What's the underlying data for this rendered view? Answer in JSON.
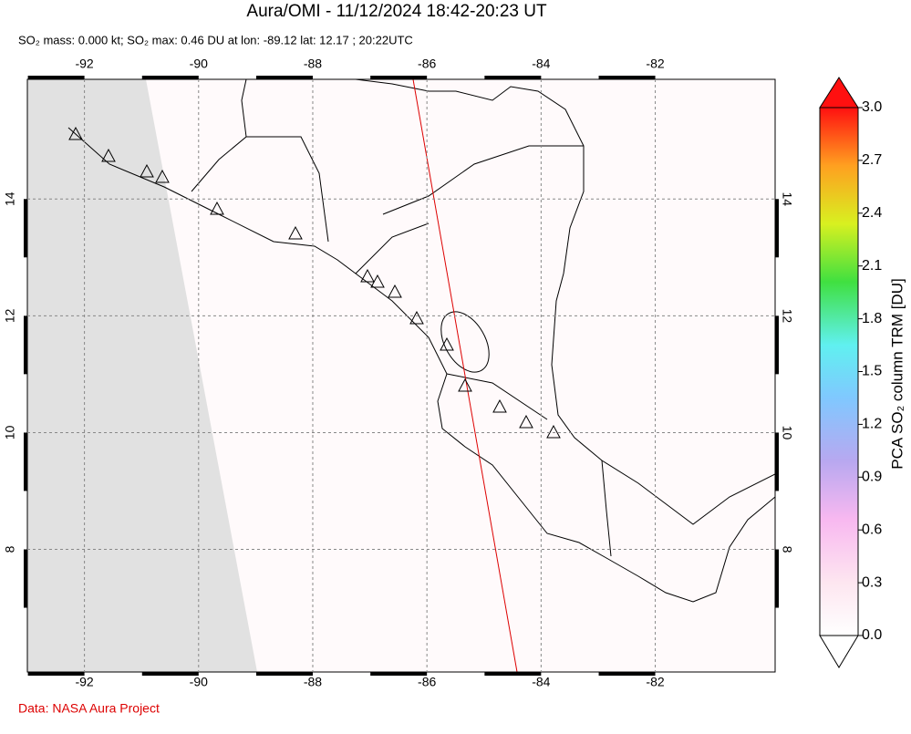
{
  "chart_data": {
    "type": "map",
    "title": "Aura/OMI - 11/12/2024 18:42-20:23 UT",
    "subtitle": "SO₂ mass: 0.000 kt; SO₂ max: 0.46 DU at lon: -89.12 lat: 12.17 ; 20:22UTC",
    "xlim": [
      -93,
      -79.9
    ],
    "ylim": [
      5.9,
      16.05
    ],
    "xticks": [
      -92,
      -90,
      -88,
      -86,
      -84,
      -82
    ],
    "yticks": [
      8,
      10,
      12,
      14
    ],
    "grid": true,
    "colorbar": {
      "label": "PCA SO₂ column TRM [DU]",
      "lim": [
        0,
        3
      ],
      "ticks": [
        {
          "value": 0,
          "label": "0.0"
        },
        {
          "value": 0.3,
          "label": "0.3"
        },
        {
          "value": 0.6,
          "label": "0.6"
        },
        {
          "value": 0.9,
          "label": "0.9"
        },
        {
          "value": 1.2,
          "label": "1.2"
        },
        {
          "value": 1.5,
          "label": "1.5"
        },
        {
          "value": 1.8,
          "label": "1.8"
        },
        {
          "value": 2.1,
          "label": "2.1"
        },
        {
          "value": 2.4,
          "label": "2.4"
        },
        {
          "value": 2.7,
          "label": "2.7"
        },
        {
          "value": 3,
          "label": "3.0"
        }
      ]
    },
    "source": "Data: NASA Aura Project"
  }
}
